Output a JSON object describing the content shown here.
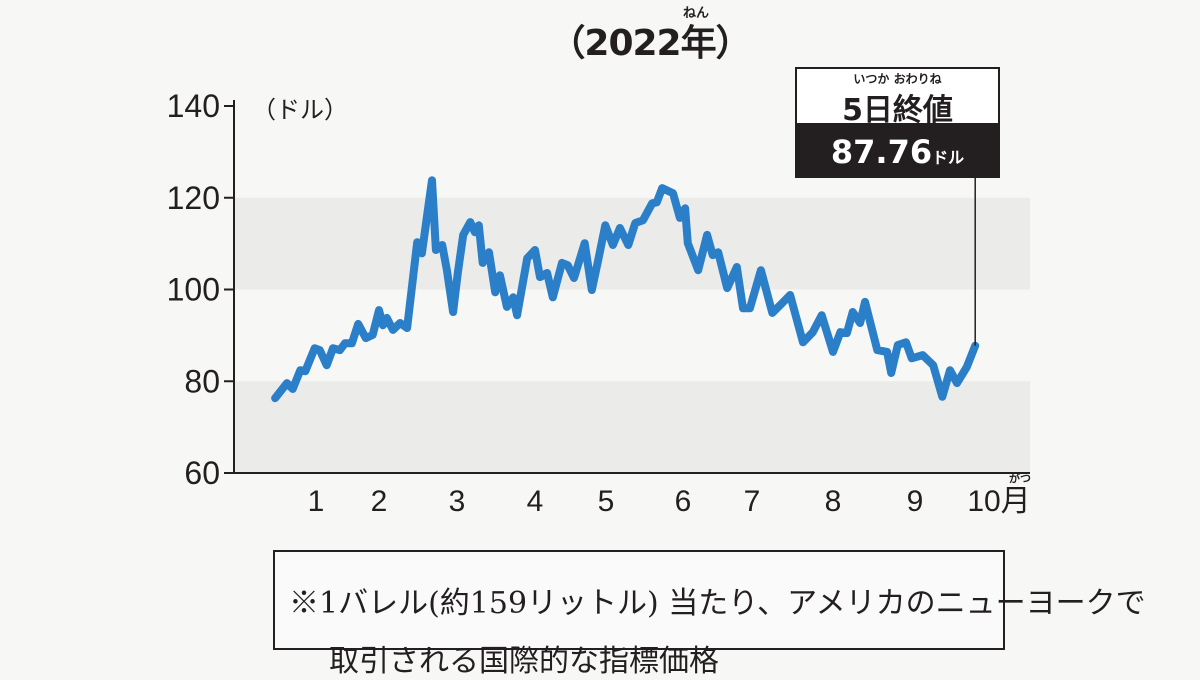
{
  "title": {
    "text": "（2022年）",
    "ruby": "ねん"
  },
  "callout": {
    "label": "5日終値",
    "label_ruby": "いつか おわりね",
    "value": "87.76",
    "unit": "ドル"
  },
  "note": {
    "line1": "※1バレル(約159リットル) 当たり、アメリカのニューヨークで",
    "line2": "取引される国際的な指標価格"
  },
  "colors": {
    "line": "#2a7fc8",
    "band": "#ebebea",
    "callout_bg": "#231f20"
  },
  "chart_data": {
    "type": "line",
    "title": "（2022年）",
    "ylabel": "（ドル）",
    "xlabel": "",
    "ylim": [
      60,
      140
    ],
    "yticks": [
      60,
      80,
      100,
      120,
      140
    ],
    "xticks": [
      1,
      2,
      3,
      4,
      5,
      6,
      7,
      8,
      9,
      10
    ],
    "xtick_labels": [
      "1",
      "2",
      "3",
      "4",
      "5",
      "6",
      "7",
      "8",
      "9",
      "10月"
    ],
    "x_unit_ruby": "がつ",
    "grid": "alternating bands",
    "series": [
      {
        "x": [
          0.35,
          0.54,
          0.63,
          0.75,
          0.83,
          0.98,
          1.06,
          1.17,
          1.27,
          1.38,
          1.46,
          1.57,
          1.67,
          1.79,
          1.9,
          2.0,
          2.05,
          2.1,
          2.18,
          2.27,
          2.36,
          2.49,
          2.55,
          2.62,
          2.68,
          2.73,
          2.81,
          2.87,
          2.95,
          3.01,
          3.08,
          3.17,
          3.23,
          3.28,
          3.33,
          3.41,
          3.49,
          3.55,
          3.64,
          3.72,
          3.77,
          3.9,
          4.0,
          4.07,
          4.17,
          4.25,
          4.38,
          4.46,
          4.55,
          4.7,
          4.8,
          4.89,
          4.99,
          5.09,
          5.18,
          5.29,
          5.38,
          5.48,
          5.6,
          5.66,
          5.73,
          5.87,
          5.96,
          6.03,
          6.07,
          6.22,
          6.35,
          6.43,
          6.51,
          6.64,
          6.78,
          6.87,
          6.97,
          7.11,
          7.25,
          7.37,
          7.47,
          7.63,
          7.75,
          7.86,
          8.0,
          8.09,
          8.17,
          8.24,
          8.33,
          8.39,
          8.54,
          8.66,
          8.71,
          8.79,
          8.89,
          8.96,
          9.11,
          9.26,
          9.39,
          9.5,
          9.6,
          9.74,
          9.86
        ],
        "y": [
          76.3,
          79.6,
          78.3,
          82.4,
          82.2,
          87.2,
          86.8,
          83.5,
          87.2,
          86.8,
          88.3,
          88.3,
          92.5,
          89.4,
          90.1,
          95.5,
          92.2,
          93.8,
          91.2,
          92.7,
          91.6,
          110.3,
          107.9,
          116.6,
          123.8,
          108.6,
          109.7,
          104.2,
          95.1,
          103.6,
          111.9,
          114.7,
          112.5,
          114.0,
          105.8,
          108.1,
          99.4,
          103.1,
          96.2,
          98.3,
          94.4,
          106.8,
          108.6,
          102.7,
          103.6,
          98.3,
          105.8,
          105.3,
          102.5,
          110.1,
          99.9,
          106.4,
          114.0,
          109.7,
          113.4,
          109.7,
          114.5,
          115.1,
          118.8,
          119.0,
          122.1,
          121.0,
          115.6,
          117.7,
          110.1,
          104.2,
          111.9,
          107.5,
          108.1,
          100.3,
          104.9,
          95.9,
          95.9,
          104.2,
          94.9,
          97.0,
          98.8,
          88.5,
          90.7,
          94.4,
          86.4,
          90.7,
          90.5,
          95.1,
          92.7,
          97.3,
          86.8,
          86.4,
          81.8,
          87.9,
          88.5,
          85.0,
          85.7,
          83.5,
          76.6,
          82.4,
          79.6,
          83.1,
          87.76
        ]
      }
    ]
  }
}
